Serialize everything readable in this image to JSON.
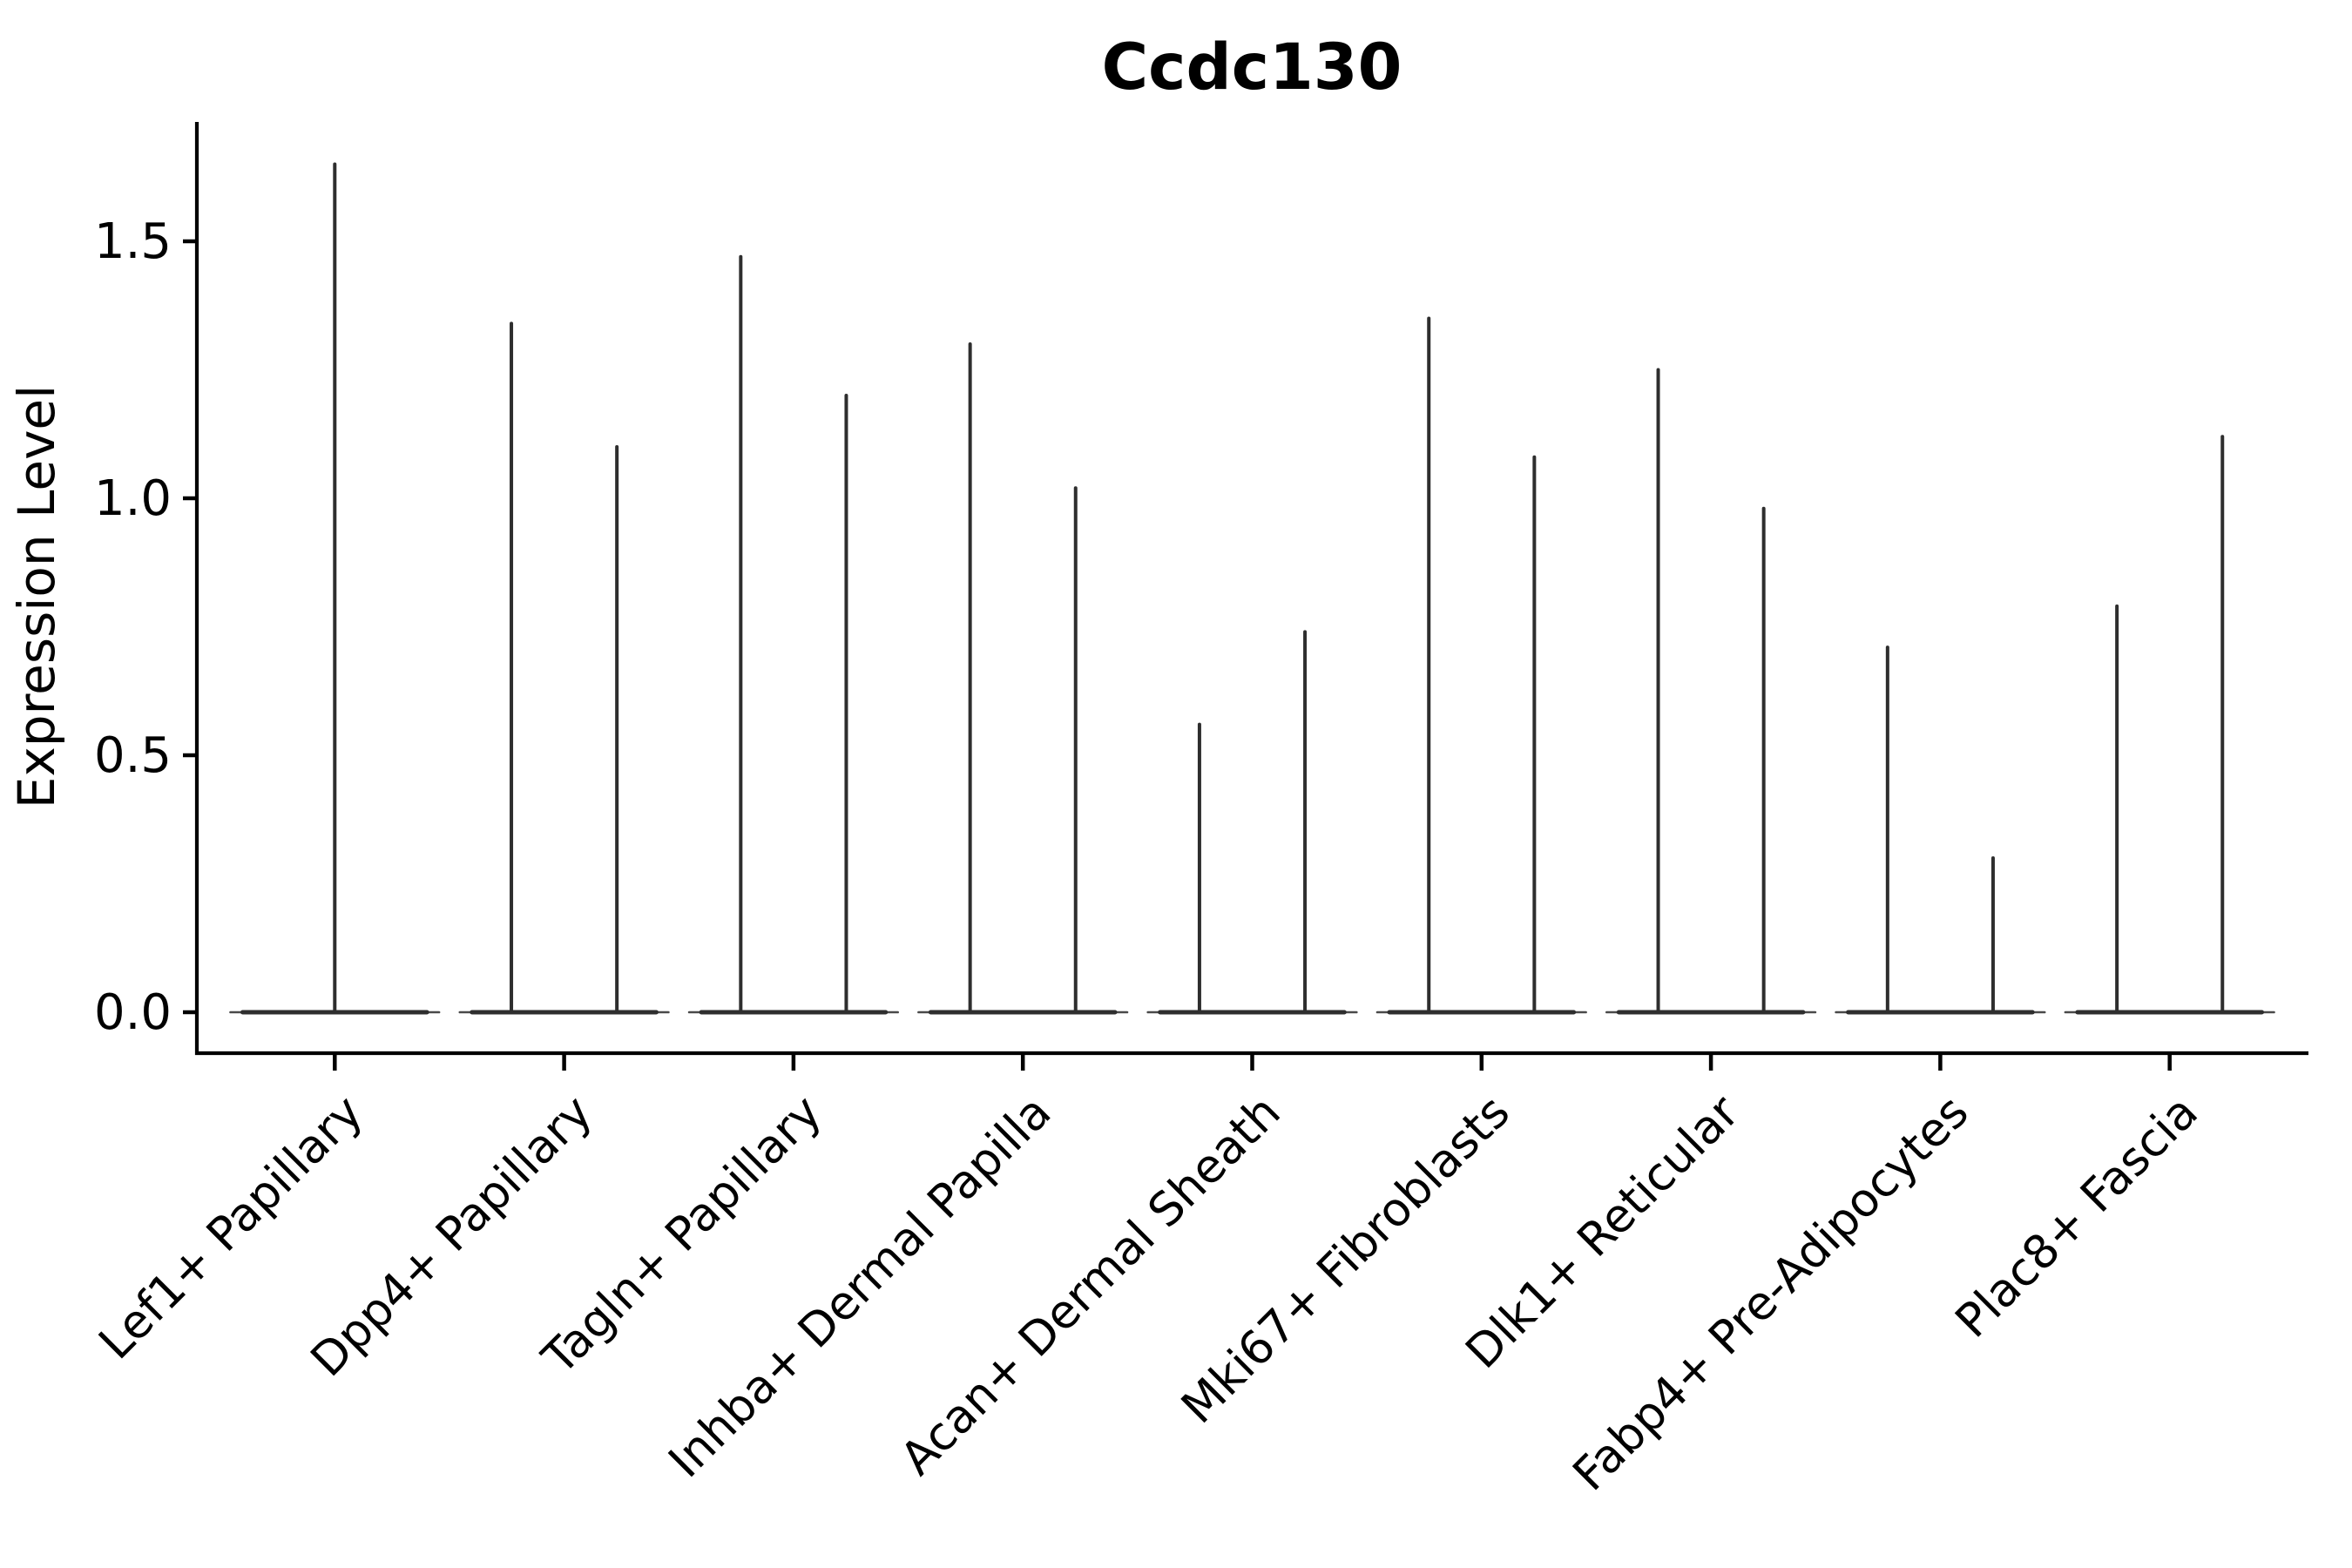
{
  "figure": {
    "title": "Ccdc130",
    "ylabel": "Expression Level"
  },
  "chart_data": {
    "type": "violin",
    "title": "Ccdc130",
    "xlabel": "",
    "ylabel": "Expression Level",
    "ylim": [
      -0.08,
      1.73
    ],
    "yticks": [
      "0.0",
      "0.5",
      "1.0",
      "1.5"
    ],
    "ytick_values": [
      0.0,
      0.5,
      1.0,
      1.5
    ],
    "grid": false,
    "legend": null,
    "categories": [
      "Lef1+ Papillary",
      "Dpp4+ Papillary",
      "Tagln+ Papillary",
      "Inhba+ Dermal Papilla",
      "Acan+ Dermal Sheath",
      "Mki67+ Fibroblasts",
      "Dlk1+ Reticular",
      "Fabp4+ Pre-Adipocytes",
      "Plac8+ Fascia"
    ],
    "violins": [
      {
        "category": "Lef1+ Papillary",
        "spikes": [
          {
            "pos": 0.0,
            "height": 1.65
          }
        ]
      },
      {
        "category": "Dpp4+ Papillary",
        "spikes": [
          {
            "pos": -0.23,
            "height": 1.34
          },
          {
            "pos": 0.23,
            "height": 1.1
          }
        ]
      },
      {
        "category": "Tagln+ Papillary",
        "spikes": [
          {
            "pos": -0.23,
            "height": 1.47
          },
          {
            "pos": 0.23,
            "height": 1.2
          }
        ]
      },
      {
        "category": "Inhba+ Dermal Papilla",
        "spikes": [
          {
            "pos": -0.23,
            "height": 1.3
          },
          {
            "pos": 0.23,
            "height": 1.02
          }
        ]
      },
      {
        "category": "Acan+ Dermal Sheath",
        "spikes": [
          {
            "pos": -0.23,
            "height": 0.56
          },
          {
            "pos": 0.23,
            "height": 0.74
          }
        ]
      },
      {
        "category": "Mki67+ Fibroblasts",
        "spikes": [
          {
            "pos": -0.23,
            "height": 1.35
          },
          {
            "pos": 0.23,
            "height": 1.08
          }
        ]
      },
      {
        "category": "Dlk1+ Reticular",
        "spikes": [
          {
            "pos": -0.23,
            "height": 1.25
          },
          {
            "pos": 0.23,
            "height": 0.98
          }
        ]
      },
      {
        "category": "Fabp4+ Pre-Adipocytes",
        "spikes": [
          {
            "pos": -0.23,
            "height": 0.71
          },
          {
            "pos": 0.23,
            "height": 0.3
          }
        ]
      },
      {
        "category": "Plac8+ Fascia",
        "spikes": [
          {
            "pos": -0.23,
            "height": 0.79
          },
          {
            "pos": 0.23,
            "height": 1.12
          }
        ]
      }
    ],
    "baseline": {
      "value": 0.0,
      "halfwidth_frac": 0.455
    },
    "style": {
      "violin_color": "#2e2e2e",
      "axis_color": "#000000",
      "text_color": "#000000",
      "background": "#ffffff"
    }
  }
}
